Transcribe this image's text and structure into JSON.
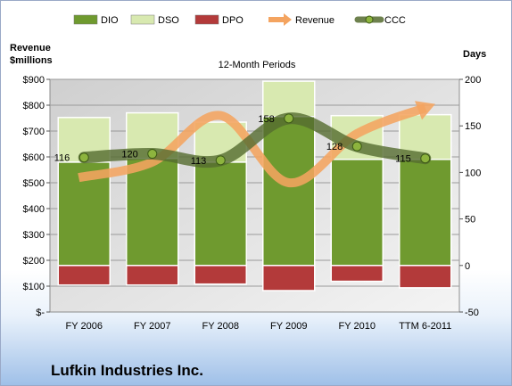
{
  "chart_data": {
    "type": "bar",
    "title": "12-Month Periods",
    "company": "Lufkin Industries Inc.",
    "left_axis_label_line1": "Revenue",
    "left_axis_label_line2": "$millions",
    "right_axis_label": "Days",
    "categories": [
      "FY 2006",
      "FY 2007",
      "FY 2008",
      "FY 2009",
      "FY 2010",
      "TTM 6-2011"
    ],
    "left_ticks": [
      "$-",
      "$100",
      "$200",
      "$300",
      "$400",
      "$500",
      "$600",
      "$700",
      "$800",
      "$900"
    ],
    "left_ylim": [
      0,
      900
    ],
    "right_ticks": [
      "-50",
      "0",
      "50",
      "100",
      "150",
      "200"
    ],
    "right_ylim": [
      -50,
      200
    ],
    "series": [
      {
        "name": "DIO",
        "axis": "right",
        "type": "stacked-bar",
        "color": "#6f9a2f",
        "values": [
          111,
          115,
          111,
          160,
          114,
          114
        ]
      },
      {
        "name": "DSO",
        "axis": "right",
        "type": "stacked-bar",
        "color": "#d8e9b0",
        "values": [
          48,
          49,
          43,
          38,
          47,
          48
        ]
      },
      {
        "name": "DPO",
        "axis": "right",
        "type": "negative-bar",
        "color": "#b33a3a",
        "values": [
          -21,
          -21,
          -20,
          -27,
          -17,
          -24
        ]
      },
      {
        "name": "Revenue",
        "axis": "left",
        "type": "line",
        "color": "#f4a460",
        "values": [
          520,
          580,
          760,
          500,
          690,
          790
        ]
      },
      {
        "name": "CCC",
        "axis": "right",
        "type": "line",
        "color": "#556b2f",
        "values": [
          116,
          120,
          113,
          158,
          128,
          115
        ]
      }
    ],
    "ccc_labels": [
      "116",
      "120",
      "113",
      "158",
      "128",
      "115"
    ],
    "legend_position": "top"
  }
}
